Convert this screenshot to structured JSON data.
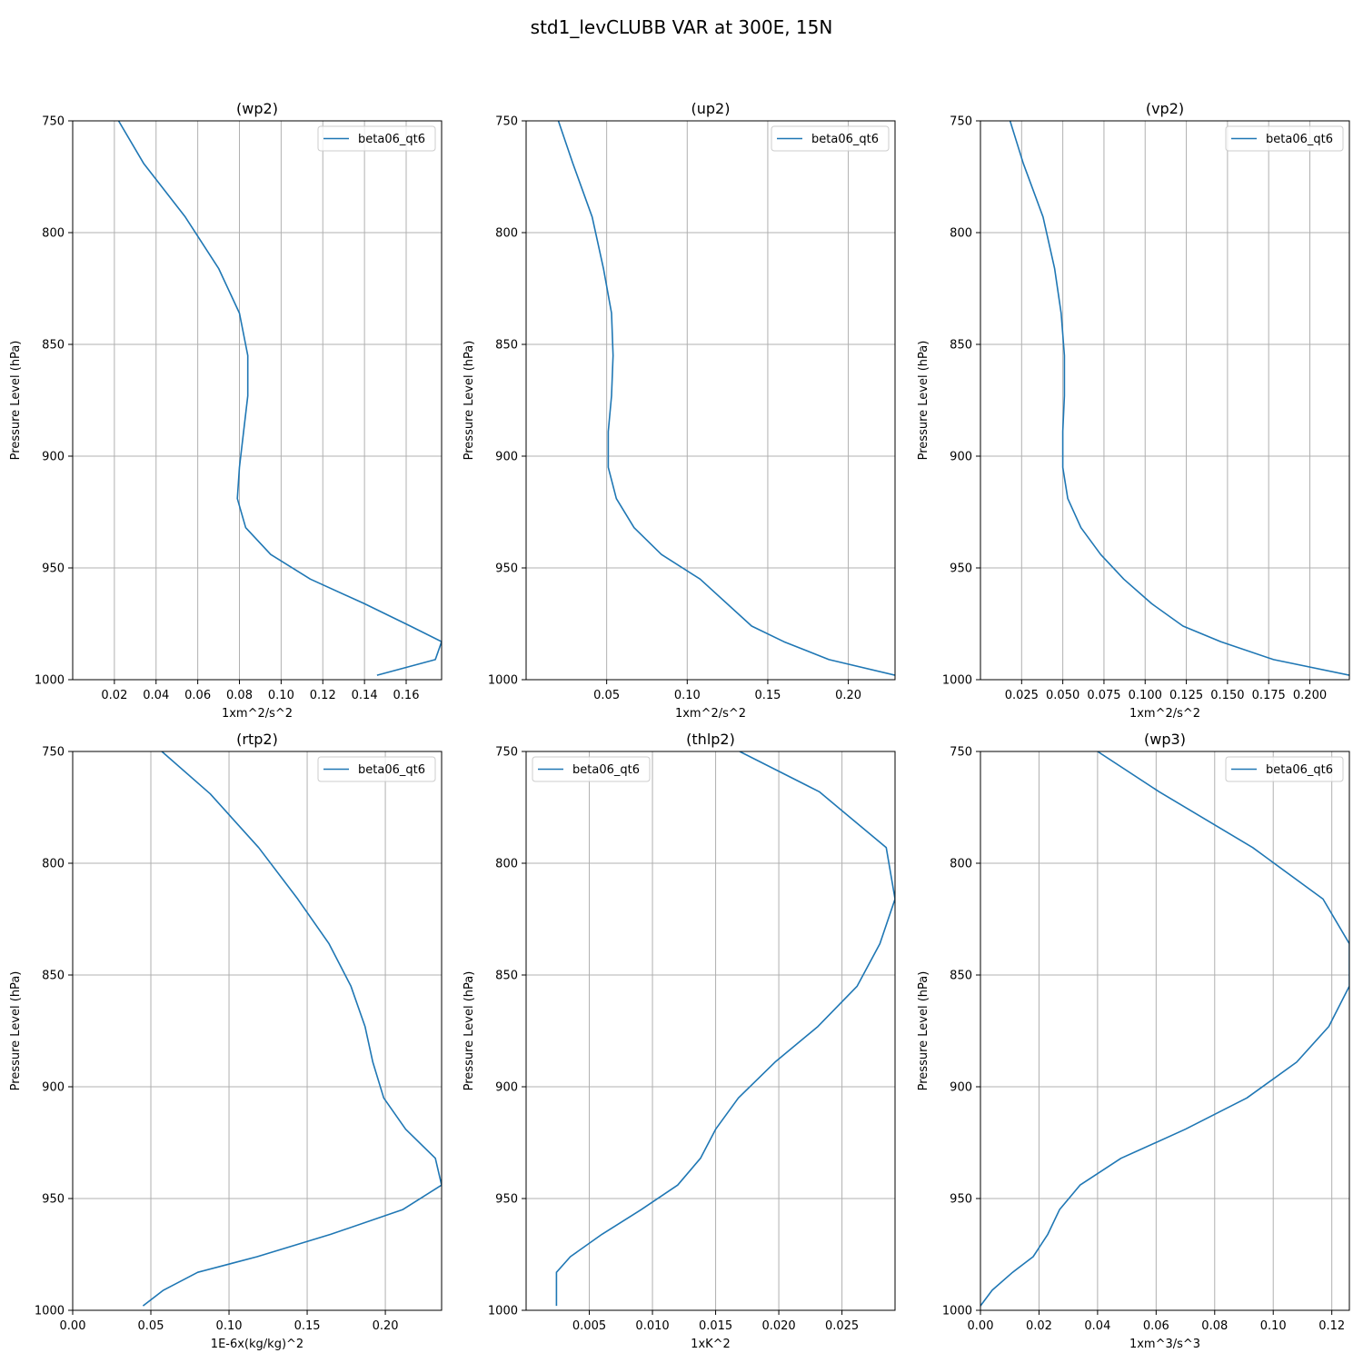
{
  "figure": {
    "title": "std1_levCLUBB VAR at 300E, 15N",
    "line_color": "#1f77b4",
    "grid_color": "#b0b0b0"
  },
  "chart_data": [
    {
      "type": "line",
      "title": "(wp2)",
      "xlabel": "1xm^2/s^2",
      "ylabel": "Pressure Level (hPa)",
      "xlim": [
        0.0,
        0.177
      ],
      "ylim": [
        1000,
        750
      ],
      "y_inverted": true,
      "xticks": [
        0.02,
        0.04,
        0.06,
        0.08,
        0.1,
        0.12,
        0.14,
        0.16
      ],
      "xtick_labels": [
        "0.02",
        "0.04",
        "0.06",
        "0.08",
        "0.10",
        "0.12",
        "0.14",
        "0.16"
      ],
      "yticks": [
        750,
        800,
        850,
        900,
        950,
        1000
      ],
      "ytick_labels": [
        "750",
        "800",
        "850",
        "900",
        "950",
        "1000"
      ],
      "grid": true,
      "legend_position": "top-right",
      "series": [
        {
          "name": "beta06_qt6",
          "x": [
            0.022,
            0.034,
            0.054,
            0.07,
            0.08,
            0.084,
            0.084,
            0.082,
            0.08,
            0.079,
            0.083,
            0.095,
            0.114,
            0.14,
            0.162,
            0.177,
            0.174,
            0.146
          ],
          "y": [
            750,
            769,
            793,
            816,
            836,
            855,
            873,
            889,
            905,
            919,
            932,
            944,
            955,
            966,
            976,
            983,
            991,
            998
          ]
        }
      ]
    },
    {
      "type": "line",
      "title": "(up2)",
      "xlabel": "1xm^2/s^2",
      "ylabel": "Pressure Level (hPa)",
      "xlim": [
        0.0,
        0.229
      ],
      "ylim": [
        1000,
        750
      ],
      "y_inverted": true,
      "xticks": [
        0.05,
        0.1,
        0.15,
        0.2
      ],
      "xtick_labels": [
        "0.05",
        "0.10",
        "0.15",
        "0.20"
      ],
      "yticks": [
        750,
        800,
        850,
        900,
        950,
        1000
      ],
      "ytick_labels": [
        "750",
        "800",
        "850",
        "900",
        "950",
        "1000"
      ],
      "grid": true,
      "legend_position": "top-right",
      "series": [
        {
          "name": "beta06_qt6",
          "x": [
            0.02,
            0.029,
            0.041,
            0.048,
            0.053,
            0.054,
            0.053,
            0.051,
            0.051,
            0.056,
            0.067,
            0.084,
            0.108,
            0.14,
            0.16,
            0.188,
            0.229
          ],
          "y": [
            750,
            769,
            793,
            816,
            836,
            855,
            873,
            889,
            905,
            919,
            932,
            944,
            955,
            976,
            983,
            991,
            998
          ]
        }
      ]
    },
    {
      "type": "line",
      "title": "(vp2)",
      "xlabel": "1xm^2/s^2",
      "ylabel": "Pressure Level (hPa)",
      "xlim": [
        0.0,
        0.224
      ],
      "ylim": [
        1000,
        750
      ],
      "y_inverted": true,
      "xticks": [
        0.025,
        0.05,
        0.075,
        0.1,
        0.125,
        0.15,
        0.175,
        0.2
      ],
      "xtick_labels": [
        "0.025",
        "0.050",
        "0.075",
        "0.100",
        "0.125",
        "0.150",
        "0.175",
        "0.200"
      ],
      "yticks": [
        750,
        800,
        850,
        900,
        950,
        1000
      ],
      "ytick_labels": [
        "750",
        "800",
        "850",
        "900",
        "950",
        "1000"
      ],
      "grid": true,
      "legend_position": "top-right",
      "series": [
        {
          "name": "beta06_qt6",
          "x": [
            0.018,
            0.026,
            0.038,
            0.045,
            0.049,
            0.051,
            0.051,
            0.05,
            0.05,
            0.053,
            0.061,
            0.073,
            0.087,
            0.104,
            0.123,
            0.146,
            0.178,
            0.224
          ],
          "y": [
            750,
            769,
            793,
            816,
            836,
            855,
            873,
            889,
            905,
            919,
            932,
            944,
            955,
            966,
            976,
            983,
            991,
            998
          ]
        }
      ]
    },
    {
      "type": "line",
      "title": "(rtp2)",
      "xlabel": "1E-6x(kg/kg)^2",
      "ylabel": "Pressure Level (hPa)",
      "xlim": [
        0.0,
        0.236
      ],
      "ylim": [
        1000,
        750
      ],
      "y_inverted": true,
      "xticks": [
        0.0,
        0.05,
        0.1,
        0.15,
        0.2
      ],
      "xtick_labels": [
        "0.00",
        "0.05",
        "0.10",
        "0.15",
        "0.20"
      ],
      "yticks": [
        750,
        800,
        850,
        900,
        950,
        1000
      ],
      "ytick_labels": [
        "750",
        "800",
        "850",
        "900",
        "950",
        "1000"
      ],
      "grid": true,
      "legend_position": "top-right",
      "series": [
        {
          "name": "beta06_qt6",
          "x": [
            0.057,
            0.088,
            0.119,
            0.144,
            0.164,
            0.178,
            0.187,
            0.192,
            0.199,
            0.213,
            0.232,
            0.236,
            0.211,
            0.165,
            0.118,
            0.08,
            0.058,
            0.045
          ],
          "y": [
            750,
            769,
            793,
            816,
            836,
            855,
            873,
            889,
            905,
            919,
            932,
            944,
            955,
            966,
            976,
            983,
            991,
            998
          ]
        }
      ]
    },
    {
      "type": "line",
      "title": "(thlp2)",
      "xlabel": "1xK^2",
      "ylabel": "Pressure Level (hPa)",
      "xlim": [
        0.0,
        0.0292
      ],
      "ylim": [
        1000,
        750
      ],
      "y_inverted": true,
      "xticks": [
        0.005,
        0.01,
        0.015,
        0.02,
        0.025
      ],
      "xtick_labels": [
        "0.005",
        "0.010",
        "0.015",
        "0.020",
        "0.025"
      ],
      "yticks": [
        750,
        800,
        850,
        900,
        950,
        1000
      ],
      "ytick_labels": [
        "750",
        "800",
        "850",
        "900",
        "950",
        "1000"
      ],
      "grid": true,
      "legend_position": "top-left",
      "series": [
        {
          "name": "beta06_qt6",
          "x": [
            0.0169,
            0.0232,
            0.0285,
            0.0292,
            0.028,
            0.0262,
            0.0231,
            0.0197,
            0.0168,
            0.015,
            0.0138,
            0.012,
            0.0091,
            0.006,
            0.0035,
            0.0024,
            0.0024
          ],
          "y": [
            750,
            768,
            793,
            816,
            836,
            855,
            873,
            889,
            905,
            919,
            932,
            944,
            955,
            966,
            976,
            983,
            998
          ]
        }
      ]
    },
    {
      "type": "line",
      "title": "(wp3)",
      "xlabel": "1xm^3/s^3",
      "ylabel": "Pressure Level (hPa)",
      "xlim": [
        0.0,
        0.126
      ],
      "ylim": [
        1000,
        750
      ],
      "y_inverted": true,
      "xticks": [
        0.0,
        0.02,
        0.04,
        0.06,
        0.08,
        0.1,
        0.12
      ],
      "xtick_labels": [
        "0.00",
        "0.02",
        "0.04",
        "0.06",
        "0.08",
        "0.10",
        "0.12"
      ],
      "yticks": [
        750,
        800,
        850,
        900,
        950,
        1000
      ],
      "ytick_labels": [
        "750",
        "800",
        "850",
        "900",
        "950",
        "1000"
      ],
      "grid": true,
      "legend_position": "top-right",
      "series": [
        {
          "name": "beta06_qt6",
          "x": [
            0.04,
            0.061,
            0.093,
            0.117,
            0.126,
            0.126,
            0.119,
            0.108,
            0.091,
            0.07,
            0.048,
            0.034,
            0.027,
            0.023,
            0.018,
            0.011,
            0.004,
            0.0
          ],
          "y": [
            750,
            768,
            793,
            816,
            836,
            855,
            873,
            889,
            905,
            919,
            932,
            944,
            955,
            966,
            976,
            983,
            991,
            998
          ]
        }
      ]
    }
  ]
}
